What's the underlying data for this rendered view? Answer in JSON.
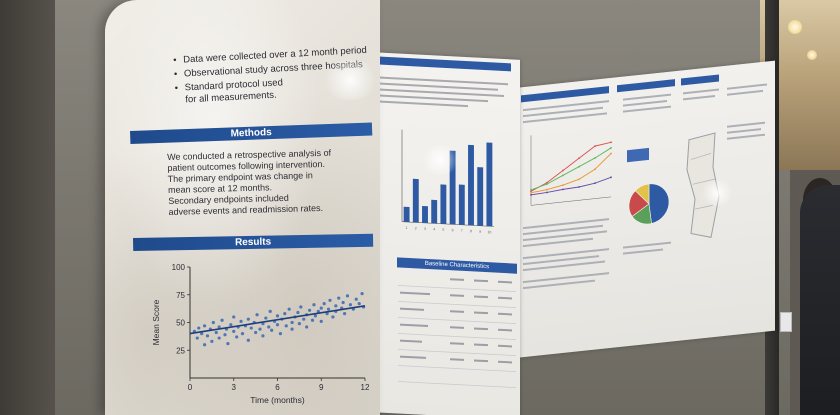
{
  "poster": {
    "intro_bullets": [
      "Data were collected over a 12 month period",
      "Observational study across three hospitals",
      "Standard protocol used"
    ],
    "intro_bullet_continuation": "for all measurements.",
    "methods_heading": "Methods",
    "methods_lines": [
      "We conducted a retrospective analysis of",
      "patient outcomes following intervention.",
      "The primary endpoint was change in",
      "mean score at 12 months.",
      "Secondary endpoints included",
      "adverse events and readmission rates."
    ],
    "results_heading": "Results"
  },
  "secondary_poster": {
    "table_heading": "Baseline Characteristics"
  },
  "colors": {
    "heading_bar": "#1f4b8c",
    "scatter_points": "#3a66b0",
    "trend_line": "#1f3f7a",
    "bar_fill": "#2d5aa3",
    "pie": [
      "#2d5aa3",
      "#5aa05a",
      "#c94a4a",
      "#e3c24a"
    ]
  },
  "chart_data": [
    {
      "type": "scatter",
      "title": "",
      "xlabel": "Time (months)",
      "ylabel": "Mean Score",
      "xlim": [
        0,
        12
      ],
      "ylim": [
        0,
        100
      ],
      "xticks": [
        0,
        3,
        6,
        9,
        12
      ],
      "yticks": [
        25,
        50,
        75,
        100
      ],
      "grid": false,
      "trend_line": {
        "x": [
          0,
          12
        ],
        "y": [
          40,
          65
        ]
      },
      "points": [
        [
          0.3,
          42
        ],
        [
          0.5,
          36
        ],
        [
          0.6,
          45
        ],
        [
          0.8,
          40
        ],
        [
          1.0,
          30
        ],
        [
          1.0,
          47
        ],
        [
          1.2,
          38
        ],
        [
          1.4,
          44
        ],
        [
          1.5,
          33
        ],
        [
          1.6,
          50
        ],
        [
          1.8,
          41
        ],
        [
          2.0,
          36
        ],
        [
          2.0,
          46
        ],
        [
          2.2,
          52
        ],
        [
          2.4,
          39
        ],
        [
          2.5,
          44
        ],
        [
          2.6,
          31
        ],
        [
          2.8,
          48
        ],
        [
          3.0,
          42
        ],
        [
          3.0,
          55
        ],
        [
          3.2,
          37
        ],
        [
          3.3,
          46
        ],
        [
          3.5,
          51
        ],
        [
          3.6,
          40
        ],
        [
          3.8,
          47
        ],
        [
          4.0,
          34
        ],
        [
          4.0,
          53
        ],
        [
          4.2,
          45
        ],
        [
          4.4,
          50
        ],
        [
          4.5,
          41
        ],
        [
          4.6,
          57
        ],
        [
          4.8,
          44
        ],
        [
          5.0,
          49
        ],
        [
          5.0,
          38
        ],
        [
          5.2,
          54
        ],
        [
          5.4,
          46
        ],
        [
          5.5,
          60
        ],
        [
          5.6,
          43
        ],
        [
          5.8,
          51
        ],
        [
          6.0,
          48
        ],
        [
          6.0,
          56
        ],
        [
          6.2,
          40
        ],
        [
          6.3,
          53
        ],
        [
          6.5,
          58
        ],
        [
          6.6,
          47
        ],
        [
          6.8,
          62
        ],
        [
          7.0,
          50
        ],
        [
          7.0,
          44
        ],
        [
          7.2,
          55
        ],
        [
          7.4,
          59
        ],
        [
          7.5,
          49
        ],
        [
          7.6,
          64
        ],
        [
          7.8,
          53
        ],
        [
          8.0,
          57
        ],
        [
          8.0,
          46
        ],
        [
          8.2,
          61
        ],
        [
          8.4,
          52
        ],
        [
          8.5,
          66
        ],
        [
          8.6,
          56
        ],
        [
          8.8,
          60
        ],
        [
          9.0,
          63
        ],
        [
          9.0,
          51
        ],
        [
          9.2,
          67
        ],
        [
          9.4,
          58
        ],
        [
          9.5,
          62
        ],
        [
          9.6,
          70
        ],
        [
          9.8,
          55
        ],
        [
          10.0,
          65
        ],
        [
          10.0,
          60
        ],
        [
          10.2,
          72
        ],
        [
          10.4,
          63
        ],
        [
          10.5,
          68
        ],
        [
          10.6,
          58
        ],
        [
          10.8,
          74
        ],
        [
          11.0,
          66
        ],
        [
          11.2,
          62
        ],
        [
          11.4,
          71
        ],
        [
          11.6,
          67
        ],
        [
          11.8,
          76
        ],
        [
          11.9,
          64
        ]
      ]
    },
    {
      "type": "bar",
      "title": "",
      "categories": [
        "1",
        "2",
        "3",
        "4",
        "5",
        "6",
        "7",
        "8",
        "9",
        "10"
      ],
      "values": [
        18,
        52,
        20,
        28,
        47,
        88,
        48,
        96,
        70,
        100
      ],
      "ylim": [
        0,
        110
      ]
    },
    {
      "type": "line",
      "title": "",
      "x": [
        0,
        1,
        2,
        3,
        4,
        5
      ],
      "series": [
        {
          "values": [
            20,
            30,
            45,
            60,
            75,
            78
          ]
        },
        {
          "values": [
            22,
            28,
            38,
            48,
            58,
            70
          ]
        },
        {
          "values": [
            18,
            20,
            24,
            30,
            42,
            62
          ]
        },
        {
          "values": [
            15,
            16,
            18,
            19,
            22,
            28
          ]
        }
      ],
      "ylim": [
        0,
        100
      ]
    },
    {
      "type": "pie",
      "title": "",
      "values": [
        48,
        18,
        22,
        12
      ]
    }
  ]
}
